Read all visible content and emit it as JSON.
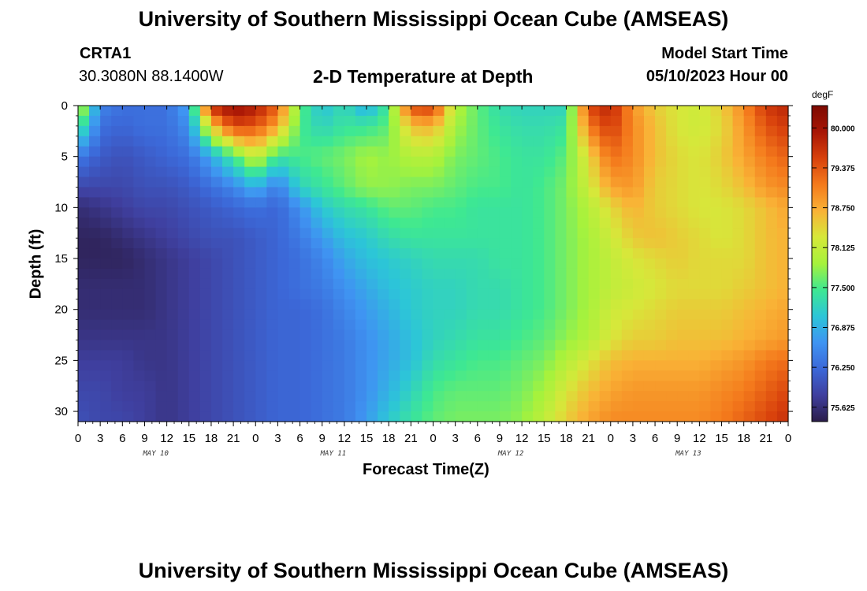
{
  "header": {
    "title": "University of Southern Mississippi Ocean Cube (AMSEAS)",
    "station": "CRTA1",
    "location": "30.3080N  88.1400W",
    "plot_title": "2-D Temperature at Depth",
    "model_label": "Model Start Time",
    "model_time": "05/10/2023 Hour 00"
  },
  "footer": {
    "title": "University of Southern Mississippi Ocean Cube (AMSEAS)"
  },
  "chart_data": {
    "type": "heatmap",
    "title": "2-D Temperature at Depth",
    "xlabel": "Forecast Time(Z)",
    "ylabel": "Depth (ft)",
    "x_tick_labels": [
      "0",
      "3",
      "6",
      "9",
      "12",
      "15",
      "18",
      "21",
      "0",
      "3",
      "6",
      "9",
      "12",
      "15",
      "18",
      "21",
      "0",
      "3",
      "6",
      "9",
      "12",
      "15",
      "18",
      "21",
      "0",
      "3",
      "6",
      "9",
      "12",
      "15",
      "18",
      "21",
      "0"
    ],
    "x_range_hours": [
      0,
      96
    ],
    "day_labels": [
      "MAY 10",
      "MAY 11",
      "MAY 12",
      "MAY 13"
    ],
    "y_tick_labels": [
      "0",
      "5",
      "10",
      "15",
      "20",
      "25",
      "30"
    ],
    "y_range_ft": [
      0,
      31
    ],
    "y_inverted": true,
    "colorbar": {
      "unit": "degF",
      "tick_labels": [
        "80.000",
        "79.375",
        "78.750",
        "78.125",
        "77.500",
        "76.875",
        "76.250",
        "75.625"
      ],
      "min": 75.4,
      "max": 80.35,
      "colors": [
        "#2b1d4a",
        "#3f3f9e",
        "#3c68d8",
        "#3f94f2",
        "#2cc5d8",
        "#3ee892",
        "#a6f23c",
        "#d6e83a",
        "#f9b236",
        "#f47a1c",
        "#d8410c",
        "#a81606",
        "#7d0a02"
      ]
    },
    "depths_ft": [
      0,
      2,
      5,
      8,
      10,
      13,
      15,
      18,
      20,
      23,
      25,
      28,
      31
    ],
    "times_h": [
      0,
      3,
      6,
      9,
      12,
      15,
      18,
      21,
      24,
      27,
      30,
      33,
      36,
      39,
      42,
      45,
      48,
      51,
      54,
      57,
      60,
      63,
      66,
      69,
      72,
      75,
      78,
      81,
      84,
      87,
      90,
      93,
      96
    ],
    "temperature_degF": [
      [
        78.3,
        76.5,
        76.3,
        76.3,
        76.3,
        76.8,
        79.8,
        80.1,
        79.9,
        79.3,
        77.6,
        77.0,
        77.3,
        76.8,
        77.5,
        79.5,
        79.6,
        78.0,
        77.6,
        77.3,
        77.2,
        77.2,
        77.2,
        79.5,
        79.8,
        78.9,
        78.5,
        78.3,
        78.2,
        78.5,
        79.0,
        79.6,
        79.8
      ],
      [
        77.6,
        76.3,
        76.2,
        76.3,
        76.3,
        76.6,
        78.5,
        79.5,
        79.4,
        78.8,
        77.5,
        77.2,
        77.4,
        77.4,
        77.6,
        78.6,
        78.7,
        77.9,
        77.6,
        77.4,
        77.3,
        77.3,
        77.4,
        79.1,
        79.6,
        79.0,
        78.6,
        78.3,
        78.2,
        78.4,
        78.9,
        79.4,
        79.6
      ],
      [
        76.4,
        76.1,
        76.0,
        76.1,
        76.2,
        76.3,
        76.8,
        77.5,
        78.2,
        77.4,
        77.5,
        77.6,
        77.7,
        77.9,
        77.8,
        78.0,
        78.0,
        77.7,
        77.6,
        77.5,
        77.4,
        77.4,
        77.6,
        78.4,
        79.2,
        79.0,
        78.6,
        78.4,
        78.3,
        78.5,
        78.8,
        79.1,
        79.3
      ],
      [
        75.9,
        75.9,
        75.9,
        76.0,
        76.0,
        76.1,
        76.3,
        76.5,
        76.9,
        76.4,
        77.2,
        77.4,
        77.6,
        77.8,
        77.8,
        77.7,
        77.7,
        77.6,
        77.5,
        77.5,
        77.4,
        77.5,
        77.7,
        78.2,
        78.8,
        78.9,
        78.5,
        78.4,
        78.3,
        78.4,
        78.6,
        78.9,
        79.0
      ],
      [
        75.6,
        75.7,
        75.8,
        75.9,
        75.9,
        76.0,
        76.1,
        76.2,
        76.3,
        76.2,
        76.6,
        77.1,
        77.3,
        77.4,
        77.6,
        77.6,
        77.5,
        77.5,
        77.4,
        77.4,
        77.4,
        77.5,
        77.7,
        78.0,
        78.4,
        78.7,
        78.5,
        78.4,
        78.3,
        78.3,
        78.4,
        78.6,
        78.8
      ],
      [
        75.5,
        75.5,
        75.6,
        75.7,
        75.8,
        75.9,
        76.0,
        76.0,
        76.1,
        76.2,
        76.4,
        76.7,
        77.0,
        77.1,
        77.3,
        77.4,
        77.4,
        77.4,
        77.4,
        77.4,
        77.4,
        77.5,
        77.7,
        77.9,
        78.2,
        78.5,
        78.6,
        78.5,
        78.4,
        78.3,
        78.4,
        78.6,
        78.7
      ],
      [
        75.5,
        75.5,
        75.5,
        75.6,
        75.7,
        75.8,
        75.9,
        76.0,
        76.1,
        76.2,
        76.3,
        76.5,
        76.8,
        77.0,
        77.1,
        77.2,
        77.3,
        77.3,
        77.3,
        77.4,
        77.4,
        77.5,
        77.7,
        77.9,
        78.1,
        78.3,
        78.4,
        78.5,
        78.4,
        78.4,
        78.4,
        78.6,
        78.7
      ],
      [
        75.6,
        75.6,
        75.6,
        75.6,
        75.7,
        75.8,
        75.9,
        76.0,
        76.1,
        76.2,
        76.3,
        76.4,
        76.6,
        76.8,
        77.0,
        77.1,
        77.2,
        77.2,
        77.3,
        77.3,
        77.4,
        77.5,
        77.7,
        77.9,
        78.1,
        78.2,
        78.3,
        78.4,
        78.4,
        78.4,
        78.5,
        78.6,
        78.7
      ],
      [
        75.6,
        75.6,
        75.6,
        75.6,
        75.7,
        75.8,
        75.9,
        76.0,
        76.1,
        76.2,
        76.2,
        76.3,
        76.5,
        76.7,
        76.9,
        77.1,
        77.2,
        77.2,
        77.3,
        77.3,
        77.4,
        77.5,
        77.7,
        77.9,
        78.2,
        78.3,
        78.4,
        78.5,
        78.5,
        78.5,
        78.6,
        78.7,
        78.8
      ],
      [
        75.7,
        75.7,
        75.7,
        75.7,
        75.7,
        75.8,
        75.9,
        76.0,
        76.1,
        76.2,
        76.2,
        76.3,
        76.4,
        76.6,
        76.8,
        77.0,
        77.2,
        77.3,
        77.4,
        77.4,
        77.5,
        77.6,
        77.8,
        78.0,
        78.3,
        78.5,
        78.5,
        78.6,
        78.6,
        78.6,
        78.7,
        78.8,
        78.9
      ],
      [
        75.8,
        75.8,
        75.8,
        75.7,
        75.7,
        75.8,
        75.9,
        76.0,
        76.1,
        76.2,
        76.2,
        76.3,
        76.4,
        76.6,
        76.8,
        77.0,
        77.3,
        77.4,
        77.5,
        77.5,
        77.6,
        77.7,
        78.0,
        78.3,
        78.6,
        78.7,
        78.7,
        78.7,
        78.7,
        78.8,
        78.9,
        79.1,
        79.2
      ],
      [
        75.9,
        75.9,
        75.8,
        75.8,
        75.7,
        75.8,
        75.9,
        76.0,
        76.1,
        76.2,
        76.2,
        76.3,
        76.4,
        76.6,
        76.9,
        77.2,
        77.5,
        77.6,
        77.6,
        77.6,
        77.7,
        77.9,
        78.3,
        78.6,
        78.8,
        78.9,
        78.9,
        78.9,
        78.9,
        79.0,
        79.1,
        79.3,
        79.5
      ],
      [
        76.0,
        75.9,
        75.9,
        75.8,
        75.7,
        75.8,
        75.9,
        76.0,
        76.1,
        76.2,
        76.2,
        76.3,
        76.4,
        76.7,
        77.1,
        77.4,
        77.6,
        77.7,
        77.7,
        77.7,
        77.8,
        78.1,
        78.5,
        78.8,
        79.0,
        79.0,
        79.0,
        79.0,
        79.0,
        79.1,
        79.3,
        79.5,
        79.7
      ]
    ]
  }
}
